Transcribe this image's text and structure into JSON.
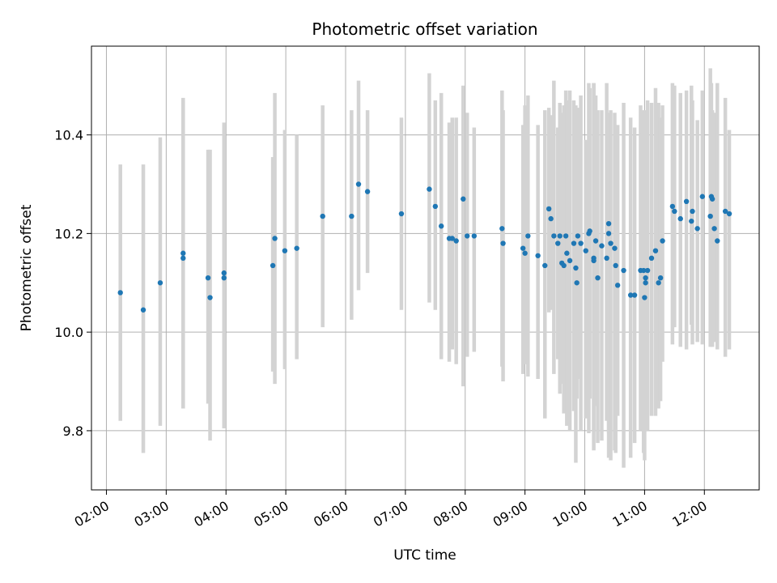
{
  "chart_data": {
    "type": "scatter",
    "title": "Photometric offset variation",
    "xlabel": "UTC time",
    "ylabel": "Photometric offset",
    "x_unit": "UTC hour",
    "xlim": [
      "01:45",
      "12:55"
    ],
    "ylim": [
      9.68,
      10.58
    ],
    "x_ticks": [
      "02:00",
      "03:00",
      "04:00",
      "05:00",
      "06:00",
      "07:00",
      "08:00",
      "09:00",
      "10:00",
      "11:00",
      "12:00"
    ],
    "y_ticks": [
      "9.8",
      "10.0",
      "10.2",
      "10.4"
    ],
    "grid": true,
    "colors": {
      "marker": "#1f77b4",
      "errorbar": "#d3d3d3",
      "grid": "#b0b0b0"
    },
    "series": [
      {
        "x": [
          "02:14",
          "02:37",
          "02:54",
          "03:17",
          "03:17",
          "03:42",
          "03:44",
          "03:58",
          "03:58",
          "04:47",
          "04:49",
          "04:59",
          "05:11",
          "05:37",
          "06:06",
          "06:13",
          "06:22",
          "06:56",
          "07:24",
          "07:30",
          "07:36",
          "07:44",
          "07:47",
          "07:51",
          "07:58",
          "08:02",
          "08:09",
          "08:37",
          "08:38",
          "08:58",
          "09:00",
          "09:03",
          "09:13",
          "09:20",
          "09:24",
          "09:26",
          "09:29",
          "09:33",
          "09:35",
          "09:37",
          "09:39",
          "09:41",
          "09:42",
          "09:45",
          "09:49",
          "09:51",
          "09:52",
          "09:53",
          "09:56",
          "10:01",
          "10:04",
          "10:05",
          "10:09",
          "10:09",
          "10:11",
          "10:13",
          "10:17",
          "10:22",
          "10:24",
          "10:24",
          "10:26",
          "10:30",
          "10:31",
          "10:33",
          "10:39",
          "10:46",
          "10:50",
          "10:56",
          "10:59",
          "11:00",
          "11:01",
          "11:01",
          "11:03",
          "11:07",
          "11:11",
          "11:14",
          "11:16",
          "11:18",
          "11:28",
          "11:30",
          "11:36",
          "11:42",
          "11:47",
          "11:48",
          "11:53",
          "11:58",
          "12:06",
          "12:07",
          "12:08",
          "12:10",
          "12:13",
          "12:21",
          "12:25"
        ],
        "y": [
          10.08,
          10.045,
          10.1,
          10.16,
          10.15,
          10.11,
          10.07,
          10.12,
          10.11,
          10.135,
          10.19,
          10.165,
          10.17,
          10.235,
          10.235,
          10.3,
          10.285,
          10.24,
          10.29,
          10.255,
          10.215,
          10.19,
          10.19,
          10.185,
          10.27,
          10.195,
          10.195,
          10.21,
          10.18,
          10.17,
          10.16,
          10.195,
          10.155,
          10.135,
          10.25,
          10.23,
          10.195,
          10.18,
          10.195,
          10.14,
          10.135,
          10.195,
          10.16,
          10.145,
          10.18,
          10.13,
          10.1,
          10.195,
          10.18,
          10.165,
          10.2,
          10.205,
          10.15,
          10.145,
          10.185,
          10.11,
          10.175,
          10.15,
          10.2,
          10.22,
          10.18,
          10.17,
          10.135,
          10.095,
          10.125,
          10.075,
          10.075,
          10.125,
          10.125,
          10.07,
          10.1,
          10.11,
          10.125,
          10.15,
          10.165,
          10.1,
          10.11,
          10.185,
          10.255,
          10.245,
          10.23,
          10.265,
          10.225,
          10.245,
          10.21,
          10.275,
          10.235,
          10.275,
          10.27,
          10.21,
          10.185,
          10.245,
          10.24
        ],
        "yerr_low": [
          9.82,
          9.755,
          9.81,
          9.845,
          9.845,
          9.855,
          9.78,
          9.805,
          9.805,
          9.92,
          9.895,
          9.925,
          9.945,
          10.01,
          10.025,
          10.085,
          10.12,
          10.045,
          10.06,
          10.045,
          9.945,
          9.94,
          9.965,
          9.935,
          9.89,
          9.95,
          9.96,
          9.93,
          9.9,
          9.915,
          9.935,
          9.91,
          9.905,
          9.825,
          10.04,
          10.045,
          9.915,
          9.945,
          9.875,
          9.895,
          9.835,
          9.895,
          9.81,
          9.8,
          9.84,
          9.735,
          9.865,
          9.905,
          9.8,
          9.825,
          9.795,
          9.865,
          9.8,
          9.76,
          9.85,
          9.775,
          9.78,
          9.82,
          9.795,
          9.745,
          9.74,
          9.76,
          9.755,
          9.83,
          9.725,
          9.745,
          9.775,
          9.8,
          9.755,
          9.74,
          9.815,
          9.8,
          9.8,
          9.83,
          9.83,
          9.845,
          9.86,
          9.94,
          9.975,
          10.01,
          9.97,
          9.965,
          10.015,
          9.975,
          9.98,
          9.975,
          9.97,
          9.995,
          9.97,
          9.98,
          9.965,
          9.95,
          9.965
        ],
        "yerr_high": [
          10.34,
          10.34,
          10.395,
          10.475,
          10.47,
          10.37,
          10.37,
          10.425,
          10.42,
          10.355,
          10.485,
          10.41,
          10.4,
          10.46,
          10.45,
          10.51,
          10.45,
          10.435,
          10.525,
          10.47,
          10.485,
          10.425,
          10.435,
          10.435,
          10.5,
          10.445,
          10.415,
          10.49,
          10.45,
          10.42,
          10.46,
          10.48,
          10.42,
          10.45,
          10.455,
          10.44,
          10.51,
          10.415,
          10.465,
          10.445,
          10.46,
          10.49,
          10.47,
          10.49,
          10.47,
          10.46,
          10.445,
          10.455,
          10.48,
          10.39,
          10.505,
          10.495,
          10.505,
          10.505,
          10.48,
          10.45,
          10.45,
          10.505,
          10.445,
          10.44,
          10.45,
          10.445,
          10.42,
          10.42,
          10.465,
          10.435,
          10.415,
          10.46,
          10.45,
          10.415,
          10.45,
          10.44,
          10.47,
          10.465,
          10.495,
          10.465,
          10.435,
          10.46,
          10.505,
          10.5,
          10.485,
          10.49,
          10.5,
          10.47,
          10.43,
          10.49,
          10.535,
          10.505,
          10.45,
          10.445,
          10.505,
          10.475,
          10.41
        ]
      }
    ]
  }
}
